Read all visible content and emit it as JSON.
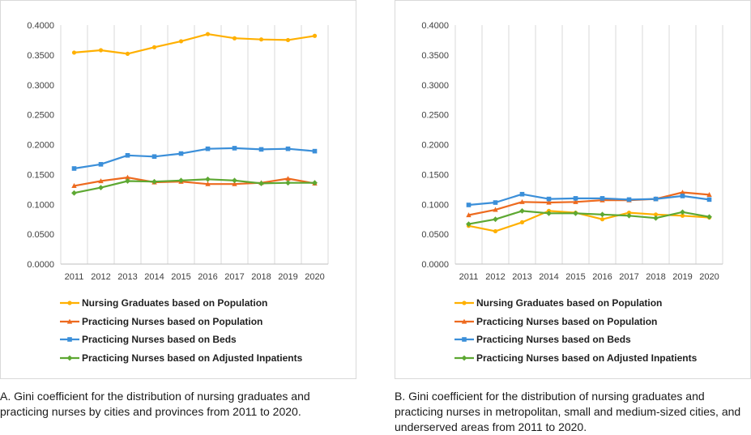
{
  "colors": {
    "Nursing Graduates based on Population": "#FFB000",
    "Practicing Nurses based on Population": "#ED6A1F",
    "Practicing Nurses based on Beds": "#3B8FD9",
    "Practicing Nurses based on Adjusted Inpatients": "#5DA832"
  },
  "chart_data": [
    {
      "type": "line",
      "caption": "A. Gini coefficient for the distribution of  nursing graduates and practicing nurses by cities and provinces from 2011 to 2020.",
      "x": [
        "2011",
        "2012",
        "2013",
        "2014",
        "2015",
        "2016",
        "2017",
        "2018",
        "2019",
        "2020"
      ],
      "ylim": [
        0,
        0.4
      ],
      "yticks": [
        "0.0000",
        "0.0500",
        "0.1000",
        "0.1500",
        "0.2000",
        "0.2500",
        "0.3000",
        "0.3500",
        "0.4000"
      ],
      "grid": "vertical",
      "legend_position": "bottom",
      "series": [
        {
          "name": "Nursing Graduates based on Population",
          "marker": "circle",
          "values": [
            0.354,
            0.358,
            0.352,
            0.363,
            0.373,
            0.385,
            0.378,
            0.376,
            0.375,
            0.382
          ]
        },
        {
          "name": "Practicing Nurses based on Population",
          "marker": "triangle",
          "values": [
            0.131,
            0.139,
            0.145,
            0.137,
            0.138,
            0.134,
            0.134,
            0.136,
            0.143,
            0.135
          ]
        },
        {
          "name": "Practicing Nurses based on Beds",
          "marker": "square",
          "values": [
            0.16,
            0.167,
            0.182,
            0.18,
            0.185,
            0.193,
            0.194,
            0.192,
            0.193,
            0.189
          ]
        },
        {
          "name": "Practicing Nurses based on Adjusted Inpatients",
          "marker": "diamond",
          "values": [
            0.119,
            0.128,
            0.139,
            0.138,
            0.14,
            0.142,
            0.14,
            0.135,
            0.136,
            0.136
          ]
        }
      ]
    },
    {
      "type": "line",
      "caption": "B. Gini coefficient for the distribution of nursing graduates and practicing nurses in metropolitan, small and medium-sized cities, and underserved areas from 2011 to 2020.",
      "x": [
        "2011",
        "2012",
        "2013",
        "2014",
        "2015",
        "2016",
        "2017",
        "2018",
        "2019",
        "2020"
      ],
      "ylim": [
        0,
        0.4
      ],
      "yticks": [
        "0.0000",
        "0.0500",
        "0.1000",
        "0.1500",
        "0.2000",
        "0.2500",
        "0.3000",
        "0.3500",
        "0.4000"
      ],
      "grid": "vertical",
      "legend_position": "bottom",
      "series": [
        {
          "name": "Nursing Graduates based on Population",
          "marker": "circle",
          "values": [
            0.064,
            0.055,
            0.07,
            0.089,
            0.086,
            0.075,
            0.086,
            0.083,
            0.081,
            0.078
          ]
        },
        {
          "name": "Practicing Nurses based on Population",
          "marker": "triangle",
          "values": [
            0.082,
            0.091,
            0.104,
            0.103,
            0.104,
            0.107,
            0.107,
            0.109,
            0.12,
            0.116
          ]
        },
        {
          "name": "Practicing Nurses based on Beds",
          "marker": "square",
          "values": [
            0.099,
            0.103,
            0.117,
            0.109,
            0.11,
            0.11,
            0.108,
            0.109,
            0.114,
            0.108
          ]
        },
        {
          "name": "Practicing Nurses based on Adjusted Inpatients",
          "marker": "diamond",
          "values": [
            0.067,
            0.075,
            0.089,
            0.085,
            0.085,
            0.083,
            0.081,
            0.077,
            0.087,
            0.079
          ]
        }
      ]
    }
  ]
}
